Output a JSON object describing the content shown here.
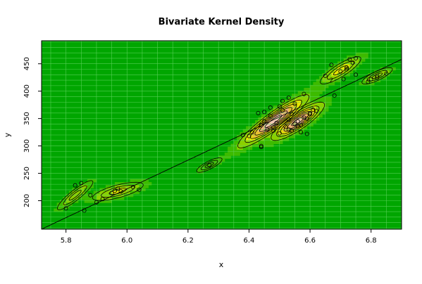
{
  "chart_data": {
    "type": "heatmap",
    "subtype": "bivariate-kernel-density",
    "title": "Bivariate Kernel Density",
    "xlabel": "x",
    "ylabel": "y",
    "xlim": [
      5.72,
      6.9
    ],
    "ylim": [
      148,
      492
    ],
    "x_ticks": [
      5.8,
      6.0,
      6.2,
      6.4,
      6.6,
      6.8
    ],
    "x_tick_labels": [
      "5.8",
      "6.0",
      "6.2",
      "6.4",
      "6.6",
      "6.8"
    ],
    "y_ticks": [
      200,
      250,
      300,
      350,
      400,
      450
    ],
    "y_tick_labels": [
      "200",
      "250",
      "300",
      "350",
      "400",
      "450"
    ],
    "grid": true,
    "contour_label": "2",
    "contour_label_position": [
      6.67,
      421
    ],
    "colors": {
      "background": "#00a600",
      "grid": "#5fd35f",
      "level_1": "#3dbb00",
      "level_2": "#8bd000",
      "level_3": "#e6e600",
      "level_4": "#e8c32e",
      "level_5": "#ecb176",
      "level_6": "#f0c9b5",
      "contour": "#000000",
      "points": "#000000"
    },
    "regression_line": {
      "x": [
        5.72,
        6.9
      ],
      "y": [
        148,
        458
      ]
    },
    "points": [
      [
        5.8,
        186
      ],
      [
        5.83,
        228
      ],
      [
        5.85,
        232
      ],
      [
        5.86,
        182
      ],
      [
        5.88,
        210
      ],
      [
        5.9,
        197
      ],
      [
        5.92,
        203
      ],
      [
        5.95,
        214
      ],
      [
        5.96,
        218
      ],
      [
        5.97,
        222
      ],
      [
        5.98,
        217
      ],
      [
        6.02,
        225
      ],
      [
        6.04,
        220
      ],
      [
        6.27,
        265
      ],
      [
        6.38,
        320
      ],
      [
        6.4,
        318
      ],
      [
        6.41,
        325
      ],
      [
        6.43,
        360
      ],
      [
        6.44,
        300
      ],
      [
        6.44,
        298
      ],
      [
        6.44,
        338
      ],
      [
        6.45,
        362
      ],
      [
        6.45,
        345
      ],
      [
        6.46,
        330
      ],
      [
        6.47,
        355
      ],
      [
        6.47,
        370
      ],
      [
        6.48,
        328
      ],
      [
        6.48,
        334
      ],
      [
        6.49,
        342
      ],
      [
        6.5,
        372
      ],
      [
        6.5,
        323
      ],
      [
        6.51,
        365
      ],
      [
        6.51,
        382
      ],
      [
        6.52,
        335
      ],
      [
        6.53,
        348
      ],
      [
        6.53,
        330
      ],
      [
        6.53,
        388
      ],
      [
        6.54,
        358
      ],
      [
        6.54,
        328
      ],
      [
        6.55,
        377
      ],
      [
        6.55,
        340
      ],
      [
        6.56,
        336
      ],
      [
        6.56,
        345
      ],
      [
        6.57,
        338
      ],
      [
        6.57,
        325
      ],
      [
        6.58,
        352
      ],
      [
        6.58,
        395
      ],
      [
        6.59,
        322
      ],
      [
        6.59,
        350
      ],
      [
        6.6,
        358
      ],
      [
        6.6,
        360
      ],
      [
        6.61,
        366
      ],
      [
        6.62,
        364
      ],
      [
        6.65,
        428
      ],
      [
        6.67,
        448
      ],
      [
        6.68,
        392
      ],
      [
        6.7,
        436
      ],
      [
        6.71,
        422
      ],
      [
        6.72,
        440
      ],
      [
        6.72,
        443
      ],
      [
        6.73,
        458
      ],
      [
        6.74,
        452
      ],
      [
        6.75,
        430
      ],
      [
        6.75,
        460
      ],
      [
        6.79,
        417
      ],
      [
        6.8,
        422
      ],
      [
        6.82,
        425
      ],
      [
        6.82,
        428
      ],
      [
        6.85,
        432
      ]
    ],
    "density_clusters": [
      {
        "cx": 5.83,
        "cy": 210,
        "sx": 0.035,
        "sy": 16,
        "rho": 0.9,
        "w": 0.55
      },
      {
        "cx": 5.97,
        "cy": 217,
        "sx": 0.05,
        "sy": 10,
        "rho": 0.7,
        "w": 0.8
      },
      {
        "cx": 6.27,
        "cy": 265,
        "sx": 0.025,
        "sy": 8,
        "rho": 0.8,
        "w": 0.3
      },
      {
        "cx": 6.48,
        "cy": 345,
        "sx": 0.06,
        "sy": 25,
        "rho": 0.92,
        "w": 2.2
      },
      {
        "cx": 6.56,
        "cy": 345,
        "sx": 0.045,
        "sy": 18,
        "rho": 0.85,
        "w": 2.0
      },
      {
        "cx": 6.7,
        "cy": 438,
        "sx": 0.04,
        "sy": 15,
        "rho": 0.85,
        "w": 0.9
      },
      {
        "cx": 6.82,
        "cy": 428,
        "sx": 0.03,
        "sy": 9,
        "rho": 0.8,
        "w": 0.6
      }
    ]
  }
}
